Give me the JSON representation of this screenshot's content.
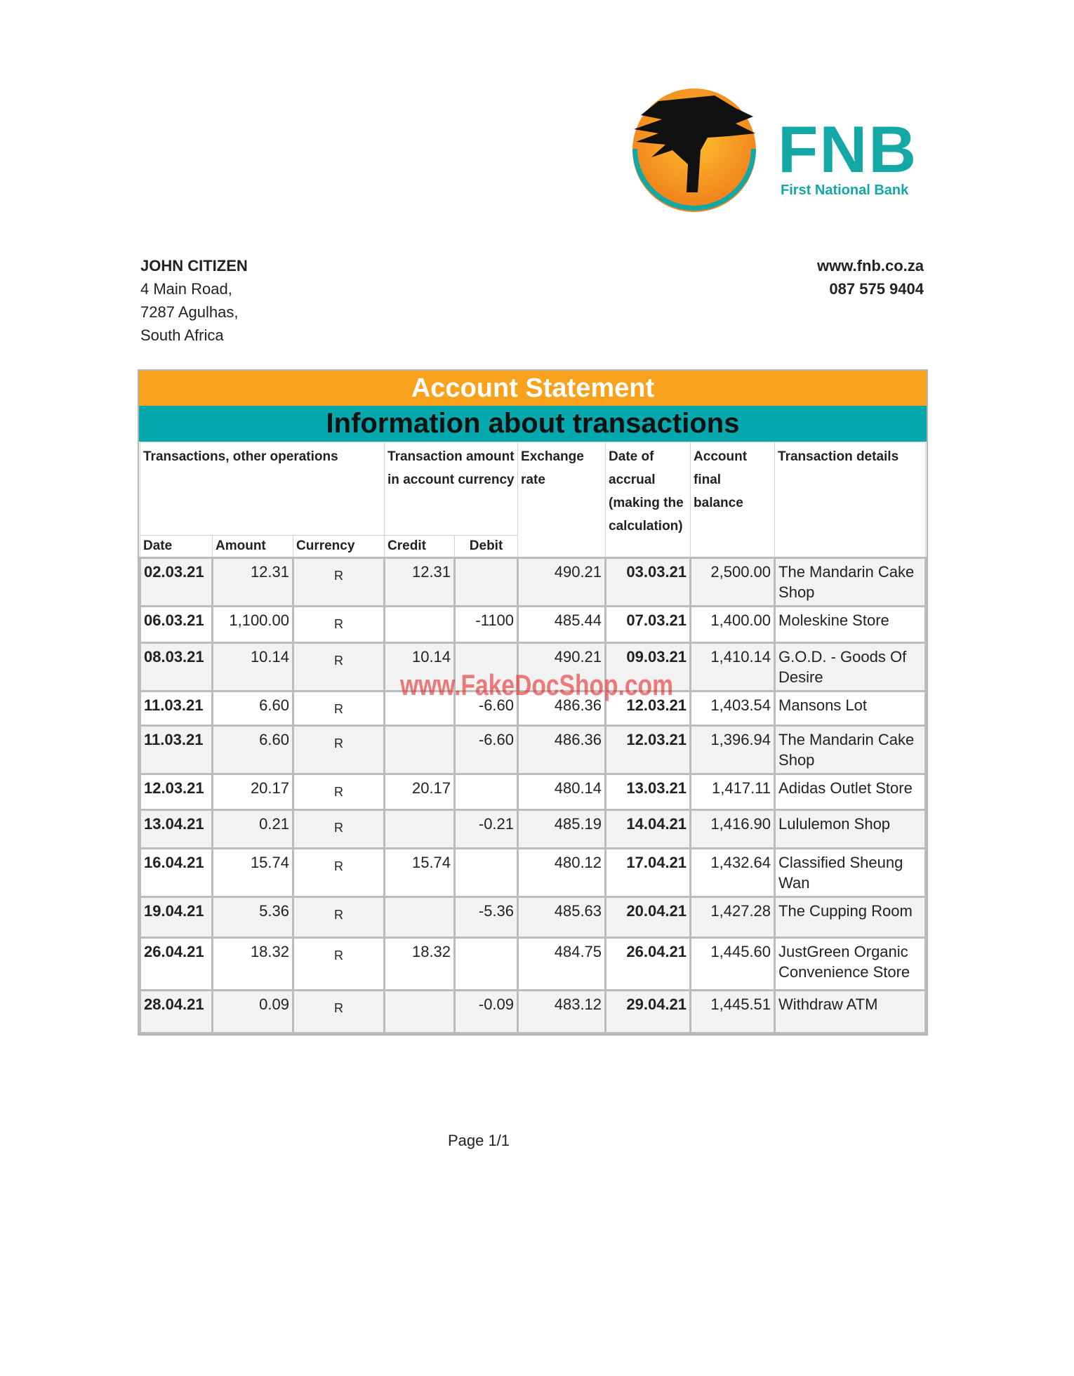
{
  "brand": {
    "name": "FNB",
    "subtitle": "First National Bank",
    "colors": {
      "teal": "#13a8a6",
      "orange": "#f8a11c"
    }
  },
  "customer": {
    "name": "JOHN CITIZEN",
    "address": [
      "4 Main Road,",
      "7287 Agulhas,",
      "South Africa"
    ]
  },
  "contact": {
    "website": "www.fnb.co.za",
    "phone": "087 575 9404"
  },
  "statement": {
    "title": "Account Statement",
    "subtitle": "Information about transactions",
    "headers": {
      "group1": "Transactions, other operations",
      "group2": "Transaction amount in account currency",
      "exchange": "Exchange rate",
      "accrual": "Date of accrual (making the calculation)",
      "balance": "Account final balance",
      "details": "Transaction details",
      "date": "Date",
      "amount": "Amount",
      "currency": "Currency",
      "credit": "Credit",
      "debit": "Debit"
    },
    "rows": [
      {
        "date": "02.03.21",
        "amount": "12.31",
        "currency": "R",
        "credit": "12.31",
        "debit": "",
        "rate": "490.21",
        "accrual": "03.03.21",
        "balance": "2,500.00",
        "details": "The Mandarin Cake Shop"
      },
      {
        "date": "06.03.21",
        "amount": "1,100.00",
        "currency": "R",
        "credit": "",
        "debit": "-1100",
        "rate": "485.44",
        "accrual": "07.03.21",
        "balance": "1,400.00",
        "details": "Moleskine Store"
      },
      {
        "date": "08.03.21",
        "amount": "10.14",
        "currency": "R",
        "credit": "10.14",
        "debit": "",
        "rate": "490.21",
        "accrual": "09.03.21",
        "balance": "1,410.14",
        "details": "G.O.D. - Goods Of Desire"
      },
      {
        "date": "11.03.21",
        "amount": "6.60",
        "currency": "R",
        "credit": "",
        "debit": "-6.60",
        "rate": "486.36",
        "accrual": "12.03.21",
        "balance": "1,403.54",
        "details": "Mansons Lot"
      },
      {
        "date": "11.03.21",
        "amount": "6.60",
        "currency": "R",
        "credit": "",
        "debit": "-6.60",
        "rate": "486.36",
        "accrual": "12.03.21",
        "balance": "1,396.94",
        "details": "The Mandarin Cake Shop"
      },
      {
        "date": "12.03.21",
        "amount": "20.17",
        "currency": "R",
        "credit": "20.17",
        "debit": "",
        "rate": "480.14",
        "accrual": "13.03.21",
        "balance": "1,417.11",
        "details": "Adidas Outlet Store"
      },
      {
        "date": "13.04.21",
        "amount": "0.21",
        "currency": "R",
        "credit": "",
        "debit": "-0.21",
        "rate": "485.19",
        "accrual": "14.04.21",
        "balance": "1,416.90",
        "details": "Lululemon Shop"
      },
      {
        "date": "16.04.21",
        "amount": "15.74",
        "currency": "R",
        "credit": "15.74",
        "debit": "",
        "rate": "480.12",
        "accrual": "17.04.21",
        "balance": "1,432.64",
        "details": "Classified Sheung Wan"
      },
      {
        "date": "19.04.21",
        "amount": "5.36",
        "currency": "R",
        "credit": "",
        "debit": "-5.36",
        "rate": "485.63",
        "accrual": "20.04.21",
        "balance": "1,427.28",
        "details": "The Cupping Room"
      },
      {
        "date": "26.04.21",
        "amount": "18.32",
        "currency": "R",
        "credit": "18.32",
        "debit": "",
        "rate": "484.75",
        "accrual": "26.04.21",
        "balance": "1,445.60",
        "details": "JustGreen Organic Convenience Store"
      },
      {
        "date": "28.04.21",
        "amount": "0.09",
        "currency": "R",
        "credit": "",
        "debit": "-0.09",
        "rate": "483.12",
        "accrual": "29.04.21",
        "balance": "1,445.51",
        "details": "Withdraw ATM"
      }
    ]
  },
  "watermark": "www.FakeDocShop.com",
  "footer": {
    "page": "Page 1/1"
  }
}
